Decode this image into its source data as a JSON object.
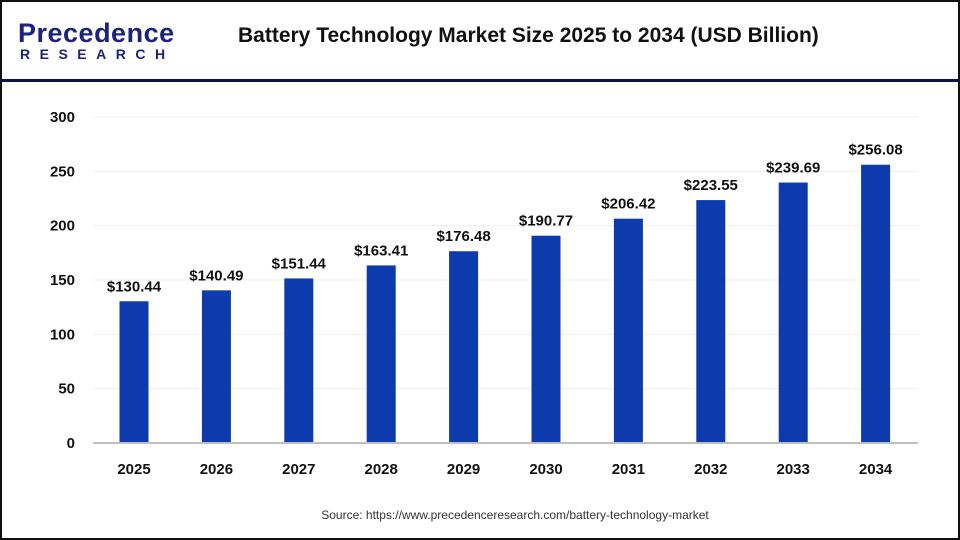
{
  "header": {
    "logo_top": "Precedence",
    "logo_bottom": "RESEARCH",
    "title": "Battery Technology Market Size 2025 to 2034 (USD Billion)"
  },
  "source": "Source: https://www.precedenceresearch.com/battery-technology-market",
  "chart_data": {
    "type": "bar",
    "title": "Battery Technology Market Size 2025 to 2034 (USD Billion)",
    "categories": [
      "2025",
      "2026",
      "2027",
      "2028",
      "2029",
      "2030",
      "2031",
      "2032",
      "2033",
      "2034"
    ],
    "values": [
      130.44,
      140.49,
      151.44,
      163.41,
      176.48,
      190.77,
      206.42,
      223.55,
      239.69,
      256.08
    ],
    "data_labels": [
      "$130.44",
      "$140.49",
      "$151.44",
      "$163.41",
      "$176.48",
      "$190.77",
      "$206.42",
      "$223.55",
      "$239.69",
      "$256.08"
    ],
    "yticks": [
      0,
      50,
      100,
      150,
      200,
      250,
      300
    ],
    "ylim": [
      0,
      300
    ],
    "xlabel": "",
    "ylabel": "",
    "grid": true,
    "bar_color": "#0d3aad"
  }
}
